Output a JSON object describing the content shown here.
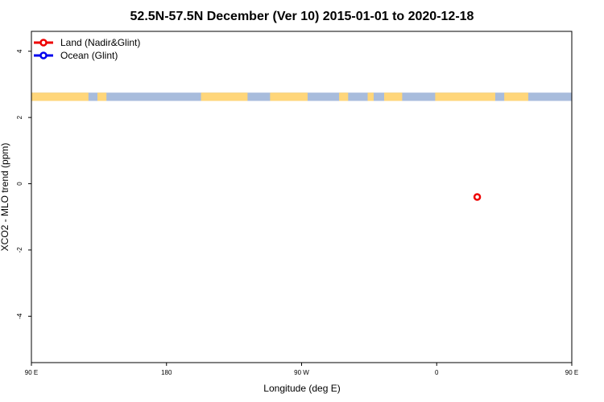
{
  "chart_data": {
    "type": "scatter",
    "title": "52.5N-57.5N December (Ver 10)   2015-01-01 to 2020-12-18",
    "xlabel": "Longitude (deg E)",
    "ylabel": "XCO2 - MLO trend (ppm)",
    "xlim": [
      90,
      450
    ],
    "ylim": [
      -5.4,
      4.6
    ],
    "x_ticks": [
      {
        "value": 90,
        "label": "90 E"
      },
      {
        "value": 180,
        "label": "180"
      },
      {
        "value": 270,
        "label": "90 W"
      },
      {
        "value": 360,
        "label": "0"
      },
      {
        "value": 450,
        "label": "90 E"
      },
      {
        "value": 540,
        "label": "180"
      }
    ],
    "y_ticks": [
      {
        "value": 4,
        "label": "4"
      },
      {
        "value": 2,
        "label": "2"
      },
      {
        "value": 0,
        "label": "0"
      },
      {
        "value": -2,
        "label": "-2"
      },
      {
        "value": -4,
        "label": "-4"
      }
    ],
    "grid": false,
    "legend_position": "top-left",
    "series": [
      {
        "name": "Land (Nadir&Glint)",
        "color": "#ee0000",
        "points": [
          {
            "x": 387,
            "y": -0.4
          }
        ]
      },
      {
        "name": "Ocean (Glint)",
        "color": "#0000ee",
        "points": []
      }
    ],
    "land_ocean_strip": {
      "y_range": [
        2.5,
        2.75
      ],
      "land_color": "#ffd67a",
      "ocean_color": "#a8bcdc",
      "land_segments": [
        [
          90,
          128
        ],
        [
          134,
          140
        ],
        [
          203,
          234
        ],
        [
          249,
          274
        ],
        [
          295,
          301
        ],
        [
          314,
          318
        ],
        [
          325,
          337
        ],
        [
          359,
          399
        ],
        [
          405,
          421
        ]
      ]
    }
  }
}
